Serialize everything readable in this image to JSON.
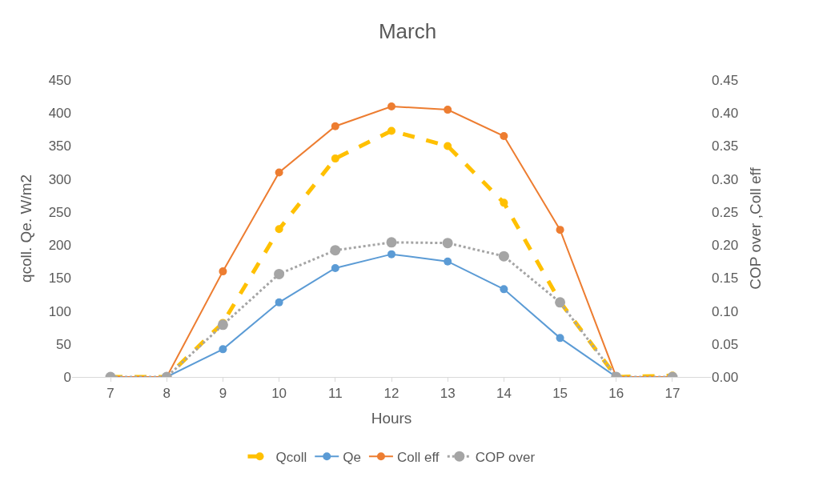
{
  "chart_data": {
    "type": "line",
    "title": "March",
    "xlabel": "Hours",
    "ylabel": "qcoll. Qe. W/m2",
    "y2label": "COP over ,Coll eff",
    "categories": [
      "7",
      "8",
      "9",
      "10",
      "11",
      "12",
      "13",
      "14",
      "15",
      "16",
      "17"
    ],
    "series": [
      {
        "name": "Qcoll",
        "color": "#ffc000",
        "marker": "circle",
        "line_style": "dashed",
        "values": [
          0,
          0,
          82,
          224,
          331,
          373,
          350,
          264,
          114,
          0,
          2
        ]
      },
      {
        "name": "Qe",
        "color": "#5b9bd5",
        "marker": "circle",
        "line_style": "solid",
        "values": [
          0,
          0,
          42,
          113,
          165,
          186,
          175,
          133,
          59,
          0,
          0
        ]
      },
      {
        "name": "Coll eff",
        "color": "#ed7d31",
        "marker": "circle",
        "line_style": "solid",
        "axis": "y2",
        "values": [
          0,
          0,
          0.16,
          0.31,
          0.38,
          0.41,
          0.405,
          0.365,
          0.223,
          0,
          0
        ]
      },
      {
        "name": "COP over",
        "color": "#a5a5a5",
        "marker": "circle",
        "line_style": "dotted",
        "axis": "y2",
        "values": [
          0,
          0,
          0.079,
          0.156,
          0.192,
          0.204,
          0.203,
          0.183,
          0.113,
          0,
          0
        ]
      }
    ],
    "ylim": [
      0,
      450
    ],
    "yticks": [
      0,
      50,
      100,
      150,
      200,
      250,
      300,
      350,
      400,
      450
    ],
    "y2lim": [
      0,
      0.45
    ],
    "y2ticks": [
      {
        "value": 0,
        "label": "0.00"
      },
      {
        "value": 0.05,
        "label": "0.05"
      },
      {
        "value": 0.1,
        "label": "0.10"
      },
      {
        "value": 0.15,
        "label": "0.15"
      },
      {
        "value": 0.2,
        "label": "0.20"
      },
      {
        "value": 0.25,
        "label": "0.25"
      },
      {
        "value": 0.3,
        "label": "0.30"
      },
      {
        "value": 0.35,
        "label": "0.35"
      },
      {
        "value": 0.4,
        "label": "0.40"
      },
      {
        "value": 0.45,
        "label": "0.45"
      }
    ],
    "legend": "bottom"
  }
}
